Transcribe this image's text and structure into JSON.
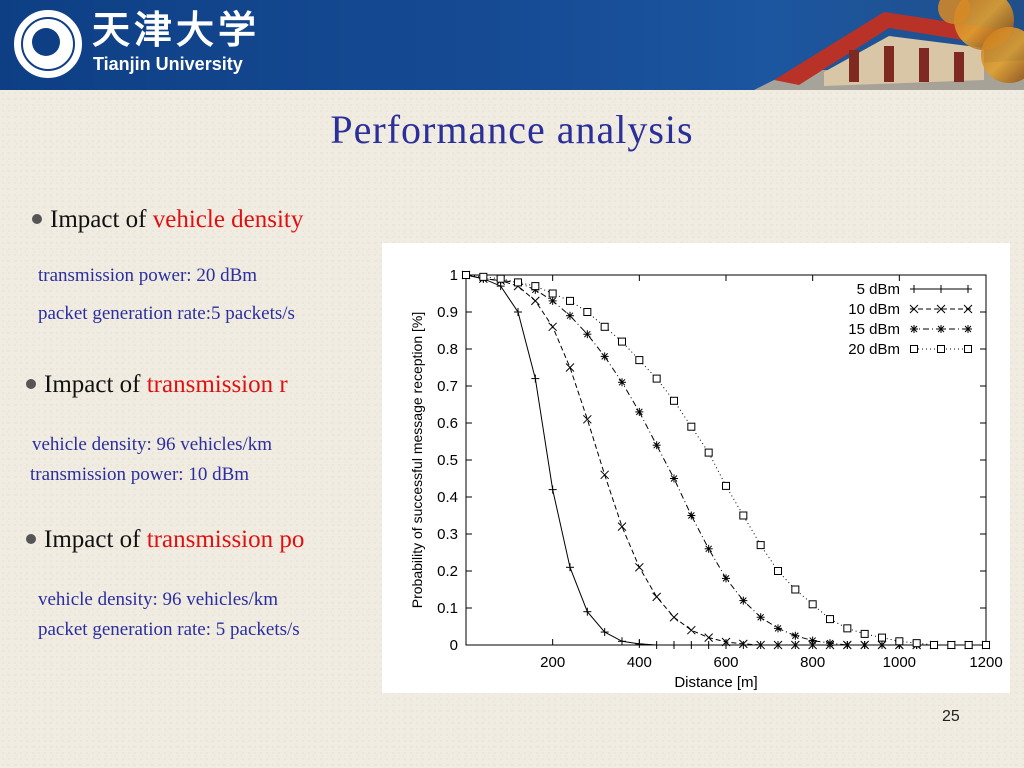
{
  "header": {
    "cn_name": "天津大学",
    "en_name": "Tianjin University"
  },
  "slide": {
    "title": "Performance analysis",
    "page_number": "25",
    "bullets": [
      {
        "prefix": "Impact of ",
        "highlight": "vehicle density",
        "details": [
          "transmission power: 20 dBm",
          "packet generation rate:5 packets/s"
        ]
      },
      {
        "prefix": "Impact of ",
        "highlight": "transmission r",
        "details": [
          "vehicle density: 96 vehicles/km",
          "transmission power: 10 dBm"
        ]
      },
      {
        "prefix": "Impact of ",
        "highlight": "transmission po",
        "details": [
          "vehicle density: 96 vehicles/km",
          "packet generation rate: 5 packets/s"
        ]
      }
    ]
  },
  "colors": {
    "banner": "#0e3f85",
    "title": "#2b2f9a",
    "highlight": "#e01010",
    "detail": "#2a2ea0"
  },
  "chart_data": {
    "type": "line",
    "title": "",
    "xlabel": "Distance [m]",
    "ylabel": "Probability of successful message reception [%]",
    "xlim": [
      0,
      1200
    ],
    "ylim": [
      0,
      1
    ],
    "xticks": [
      "200",
      "400",
      "600",
      "800",
      "1000",
      "1200"
    ],
    "yticks": [
      "0",
      "0.1",
      "0.2",
      "0.3",
      "0.4",
      "0.5",
      "0.6",
      "0.7",
      "0.8",
      "0.9",
      "1"
    ],
    "grid": false,
    "legend_position": "top-right",
    "x": [
      0,
      40,
      80,
      120,
      160,
      200,
      240,
      280,
      320,
      360,
      400,
      440,
      480,
      520,
      560,
      600,
      640,
      680,
      720,
      760,
      800,
      840,
      880,
      920,
      960,
      1000,
      1040,
      1080,
      1120,
      1160,
      1200
    ],
    "series": [
      {
        "name": "5 dBm",
        "marker": "plus",
        "line": "solid",
        "values": [
          1.0,
          0.99,
          0.97,
          0.9,
          0.72,
          0.42,
          0.21,
          0.09,
          0.035,
          0.01,
          0.003,
          0,
          0,
          0,
          0,
          0,
          0,
          0,
          0,
          0,
          0,
          0,
          0,
          0,
          0,
          0,
          0,
          0,
          0,
          0,
          0
        ]
      },
      {
        "name": "10 dBm",
        "marker": "x",
        "line": "dashed",
        "values": [
          1.0,
          0.99,
          0.985,
          0.97,
          0.93,
          0.86,
          0.75,
          0.61,
          0.46,
          0.32,
          0.21,
          0.13,
          0.075,
          0.04,
          0.02,
          0.008,
          0.003,
          0,
          0,
          0,
          0,
          0,
          0,
          0,
          0,
          0,
          0,
          0,
          0,
          0,
          0
        ]
      },
      {
        "name": "15 dBm",
        "marker": "star",
        "line": "dashdot",
        "values": [
          1.0,
          0.99,
          0.985,
          0.98,
          0.96,
          0.93,
          0.89,
          0.84,
          0.78,
          0.71,
          0.63,
          0.54,
          0.45,
          0.35,
          0.26,
          0.18,
          0.12,
          0.075,
          0.045,
          0.025,
          0.012,
          0.005,
          0,
          0,
          0,
          0,
          0,
          0,
          0,
          0,
          0
        ]
      },
      {
        "name": "20 dBm",
        "marker": "square",
        "line": "dotted",
        "values": [
          1.0,
          0.995,
          0.99,
          0.98,
          0.97,
          0.95,
          0.93,
          0.9,
          0.86,
          0.82,
          0.77,
          0.72,
          0.66,
          0.59,
          0.52,
          0.43,
          0.35,
          0.27,
          0.2,
          0.15,
          0.11,
          0.07,
          0.045,
          0.03,
          0.02,
          0.01,
          0.005,
          0,
          0,
          0,
          0
        ]
      }
    ]
  }
}
